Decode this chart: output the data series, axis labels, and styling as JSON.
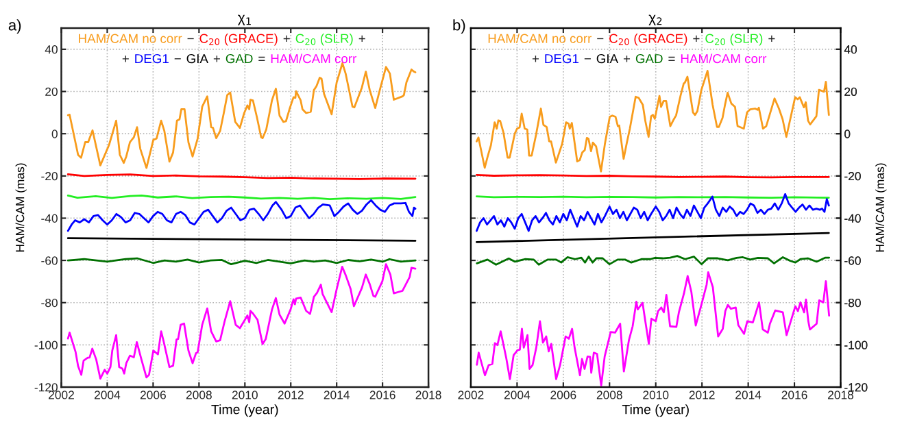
{
  "chart_data": [
    {
      "type": "line",
      "title": "χ$_{1}$",
      "xlabel": "Time (year)",
      "ylabel": "HAM/CAM (mas)",
      "xlim": [
        2002,
        2018
      ],
      "xticks": [
        2002,
        2004,
        2006,
        2008,
        2010,
        2012,
        2014,
        2016,
        2018
      ],
      "ylim": [
        -120,
        50
      ],
      "yticks": [
        -120,
        -100,
        -80,
        -60,
        -40,
        -20,
        0,
        20,
        40
      ],
      "grid": true,
      "legend": "top",
      "line_style": "solid",
      "annotations": [
        "a)",
        "−",
        "+",
        "+",
        "+",
        "−",
        "+",
        "="
      ],
      "series": [
        {
          "name": "HAM/CAM no corr",
          "color": "#f89c1c",
          "x": [
            2002.29,
            2002.36,
            2002.73,
            2002.86,
            2003.04,
            2003.17,
            2003.36,
            2003.7,
            2004.08,
            2004.39,
            2004.55,
            2004.72,
            2004.83,
            2004.99,
            2005.16,
            2005.3,
            2005.44,
            2005.71,
            2006.01,
            2006.15,
            2006.35,
            2006.49,
            2006.71,
            2006.87,
            2007.04,
            2007.15,
            2007.23,
            2007.37,
            2007.54,
            2007.72,
            2007.94,
            2008.14,
            2008.36,
            2008.53,
            2008.61,
            2008.75,
            2008.92,
            2009.08,
            2009.23,
            2009.36,
            2009.58,
            2009.78,
            2009.97,
            2010.11,
            2010.19,
            2010.24,
            2010.35,
            2010.52,
            2010.71,
            2010.77,
            2010.93,
            2011.18,
            2011.35,
            2011.51,
            2011.68,
            2011.79,
            2011.96,
            2012.12,
            2012.2,
            2012.23,
            2012.43,
            2012.51,
            2012.67,
            2012.87,
            2013.01,
            2013.12,
            2013.26,
            2013.34,
            2013.45,
            2013.78,
            2014.0,
            2014.25,
            2014.39,
            2014.69,
            2014.77,
            2015.1,
            2015.27,
            2015.44,
            2015.68,
            2015.88,
            2016.15,
            2016.32,
            2016.49,
            2016.87,
            2016.93,
            2017.04,
            2017.26,
            2017.37,
            2017.43
          ],
          "values": [
            8.8,
            9,
            -10,
            -11.4,
            -4,
            -4,
            1.6,
            -15,
            -5.3,
            6.2,
            -10,
            -13.8,
            -10.8,
            -4,
            -1.7,
            3.1,
            -7.1,
            -16.2,
            -2.9,
            -2.3,
            6.2,
            1.3,
            -13.2,
            -8.9,
            6.2,
            6.8,
            11.6,
            11.6,
            -4.1,
            -10.8,
            -2.3,
            12.8,
            17.7,
            3.1,
            2.8,
            -2.1,
            1.3,
            9.8,
            18.3,
            19.5,
            5.6,
            2.8,
            9.8,
            13.4,
            11.6,
            16.1,
            15.8,
            8,
            -1.7,
            -2.1,
            1.9,
            15.8,
            21.3,
            8.6,
            5.6,
            5.9,
            12.2,
            17.3,
            17,
            20.1,
            15.8,
            11.6,
            9.8,
            10.4,
            20.7,
            22.5,
            26.5,
            26.1,
            18.9,
            9.2,
            24.3,
            33.4,
            28.5,
            12.8,
            12.5,
            21.9,
            29.4,
            20.7,
            12.2,
            20.7,
            31.6,
            28.5,
            16.1,
            17.7,
            18.3,
            24.3,
            30.4,
            29.4,
            29.1
          ]
        },
        {
          "name": "C$_{20}$ (GRACE)",
          "color": "#ff0000",
          "x": [
            2002.29,
            2003,
            2004,
            2005,
            2006,
            2007,
            2008,
            2009,
            2010,
            2011,
            2012,
            2013,
            2014,
            2015,
            2016,
            2017.43
          ],
          "values": [
            -19.2,
            -20,
            -19.5,
            -19.3,
            -20,
            -19.8,
            -20.2,
            -20.3,
            -20.6,
            -21,
            -20.8,
            -21.2,
            -21.3,
            -21.5,
            -21.2,
            -21.3
          ]
        },
        {
          "name": "C$_{20}$ (SLR)",
          "color": "#22ee22",
          "x": [
            2002.29,
            2002.7,
            2003.5,
            2004.2,
            2005,
            2005.5,
            2006.2,
            2007,
            2007.7,
            2008.5,
            2009.3,
            2010,
            2010.7,
            2011.5,
            2012.3,
            2013,
            2013.7,
            2014.5,
            2015.3,
            2016,
            2016.8,
            2017.43
          ],
          "values": [
            -29.3,
            -30.3,
            -29.6,
            -30.4,
            -29.5,
            -29.3,
            -30.2,
            -29.7,
            -30.5,
            -30,
            -29.8,
            -30.2,
            -30.7,
            -30.4,
            -30.8,
            -30.4,
            -31,
            -30.6,
            -30.8,
            -30.4,
            -30.9,
            -30
          ]
        },
        {
          "name": "DEG1",
          "color": "#0000ff",
          "x": [
            2002.29,
            2002.45,
            2002.6,
            2002.8,
            2003.0,
            2003.2,
            2003.4,
            2003.6,
            2003.8,
            2004.0,
            2004.2,
            2004.4,
            2004.6,
            2004.8,
            2005.0,
            2005.2,
            2005.4,
            2005.6,
            2005.8,
            2006.0,
            2006.2,
            2006.4,
            2006.6,
            2006.8,
            2007.0,
            2007.2,
            2007.4,
            2007.6,
            2007.8,
            2008.0,
            2008.2,
            2008.4,
            2008.6,
            2008.8,
            2009.0,
            2009.2,
            2009.4,
            2009.6,
            2009.8,
            2010.0,
            2010.2,
            2010.4,
            2010.6,
            2010.8,
            2011.0,
            2011.2,
            2011.35,
            2011.6,
            2011.8,
            2012.0,
            2012.2,
            2012.4,
            2012.6,
            2012.8,
            2013.0,
            2013.2,
            2013.4,
            2013.7,
            2013.9,
            2014.1,
            2014.3,
            2014.5,
            2014.7,
            2014.9,
            2015.1,
            2015.3,
            2015.5,
            2015.7,
            2015.9,
            2016.1,
            2016.3,
            2016.5,
            2016.8,
            2017.0,
            2017.15,
            2017.3,
            2017.37,
            2017.43
          ],
          "values": [
            -46,
            -43,
            -41,
            -42,
            -40.5,
            -42,
            -39,
            -38.5,
            -41,
            -43,
            -41,
            -38,
            -39.5,
            -42,
            -41,
            -37.5,
            -38,
            -40,
            -42,
            -39,
            -37,
            -38,
            -41,
            -42,
            -38,
            -37,
            -38.5,
            -42,
            -43,
            -40,
            -37,
            -36,
            -39,
            -42,
            -40,
            -36.5,
            -35,
            -38,
            -41,
            -40,
            -36,
            -35.5,
            -38,
            -41,
            -38,
            -34,
            -32.3,
            -36,
            -40,
            -39,
            -35,
            -34,
            -37,
            -40,
            -38,
            -35,
            -33.5,
            -34,
            -39,
            -37,
            -34.5,
            -33,
            -36,
            -38,
            -36.5,
            -33.5,
            -31.5,
            -34,
            -36,
            -37,
            -34,
            -33,
            -33,
            -32.8,
            -37,
            -39,
            -35,
            -35.5
          ]
        },
        {
          "name": "GIA",
          "color": "#000000",
          "x": [
            2002.29,
            2017.43
          ],
          "values": [
            -49.5,
            -50.7
          ]
        },
        {
          "name": "GAD",
          "color": "#007000",
          "x": [
            2002.29,
            2003,
            2004,
            2004.8,
            2005.3,
            2006,
            2006.5,
            2007,
            2007.5,
            2008,
            2008.5,
            2009,
            2009.4,
            2010,
            2010.5,
            2011,
            2011.5,
            2012,
            2012.6,
            2013,
            2013.5,
            2014,
            2014.5,
            2015,
            2015.5,
            2016,
            2016.3,
            2016.8,
            2017.43
          ],
          "values": [
            -60,
            -59.4,
            -60.6,
            -59.4,
            -59,
            -61.2,
            -60,
            -60.6,
            -59.6,
            -61,
            -60,
            -59.8,
            -61.8,
            -60.2,
            -61.2,
            -59.8,
            -60.6,
            -61.4,
            -60,
            -60.6,
            -60,
            -61.2,
            -59.8,
            -60.4,
            -59.6,
            -60.6,
            -59.4,
            -60.6,
            -60
          ]
        },
        {
          "name": "HAM/CAM corr",
          "color": "#ff00ff",
          "x": [
            2002.29,
            2002.36,
            2002.62,
            2002.73,
            2002.87,
            2002.97,
            2003.15,
            2003.23,
            2003.35,
            2003.52,
            2003.7,
            2003.89,
            2004.0,
            2004.14,
            2004.22,
            2004.39,
            2004.52,
            2004.66,
            2004.74,
            2004.83,
            2004.99,
            2005.16,
            2005.29,
            2005.49,
            2005.71,
            2005.82,
            2006.01,
            2006.21,
            2006.35,
            2006.46,
            2006.71,
            2006.87,
            2007.02,
            2007.09,
            2007.2,
            2007.35,
            2007.54,
            2007.72,
            2007.87,
            2007.94,
            2008.14,
            2008.36,
            2008.53,
            2008.75,
            2008.92,
            2009.12,
            2009.36,
            2009.6,
            2009.78,
            2009.97,
            2010.11,
            2010.19,
            2010.24,
            2010.35,
            2010.55,
            2010.77,
            2010.91,
            2011.18,
            2011.35,
            2011.51,
            2011.73,
            2011.99,
            2012.12,
            2012.18,
            2012.23,
            2012.43,
            2012.67,
            2012.84,
            2013.01,
            2013.14,
            2013.31,
            2013.39,
            2013.78,
            2014.0,
            2014.24,
            2014.39,
            2014.61,
            2014.75,
            2015.1,
            2015.27,
            2015.44,
            2015.6,
            2015.68,
            2015.99,
            2016.15,
            2016.34,
            2016.49,
            2016.87,
            2017.18,
            2017.26,
            2017.43
          ],
          "values": [
            -97,
            -94.2,
            -103.3,
            -110,
            -114.2,
            -107.5,
            -106.1,
            -106,
            -101.8,
            -106.9,
            -116,
            -111.8,
            -113.6,
            -110.5,
            -102.7,
            -95.4,
            -110.5,
            -111.2,
            -113.6,
            -108.7,
            -105.1,
            -105.9,
            -98.7,
            -106.9,
            -115.4,
            -114.2,
            -102.7,
            -104.5,
            -93.6,
            -98.4,
            -110.5,
            -109.9,
            -97.5,
            -97.2,
            -90.5,
            -89.9,
            -102.7,
            -108.7,
            -103.9,
            -103.5,
            -90.5,
            -82.7,
            -93.6,
            -98.4,
            -97.8,
            -88.7,
            -79.3,
            -90.5,
            -92.1,
            -88.7,
            -86.1,
            -89.3,
            -83.9,
            -85.1,
            -88.1,
            -99.6,
            -97.2,
            -83.3,
            -77.8,
            -85.7,
            -89.9,
            -83.3,
            -78.4,
            -80.8,
            -78.1,
            -77.6,
            -83.9,
            -85.3,
            -77.2,
            -75.4,
            -71.5,
            -76,
            -84.5,
            -73.6,
            -63,
            -66.9,
            -73.6,
            -81.7,
            -73,
            -66.7,
            -71.2,
            -76.8,
            -77.2,
            -69.9,
            -61.8,
            -66.7,
            -75.6,
            -74.4,
            -67.9,
            -63.5,
            -63.9
          ]
        }
      ]
    },
    {
      "type": "line",
      "title": "χ$_{2}$",
      "xlabel": "Time (year)",
      "y2label": "HAM/CAM (mas)",
      "xlim": [
        2002,
        2018
      ],
      "xticks": [
        2002,
        2004,
        2006,
        2008,
        2010,
        2012,
        2014,
        2016,
        2018
      ],
      "y2lim": [
        -120,
        50
      ],
      "y2ticks": [
        -120,
        -100,
        -80,
        -60,
        -40,
        -20,
        0,
        20,
        40
      ],
      "grid": true,
      "legend": "top",
      "line_style": "solid",
      "annotations": [
        "b)",
        "−",
        "+",
        "+",
        "+",
        "−",
        "+",
        "="
      ],
      "series": [
        {
          "name": "HAM/CAM no corr",
          "color": "#f89c1c",
          "axis": "y2",
          "x": [
            2002.25,
            2002.33,
            2002.6,
            2002.73,
            2002.87,
            2003.03,
            2003.12,
            2003.19,
            2003.27,
            2003.41,
            2003.59,
            2003.68,
            2003.9,
            2004.0,
            2004.11,
            2004.2,
            2004.33,
            2004.44,
            2004.52,
            2004.63,
            2004.82,
            2005.03,
            2005.14,
            2005.28,
            2005.39,
            2005.47,
            2005.68,
            2005.95,
            2006.12,
            2006.23,
            2006.28,
            2006.37,
            2006.6,
            2006.71,
            2006.82,
            2006.93,
            2007.02,
            2007.09,
            2007.2,
            2007.28,
            2007.42,
            2007.63,
            2007.8,
            2008.01,
            2008.12,
            2008.26,
            2008.36,
            2008.42,
            2008.61,
            2008.75,
            2008.88,
            2009.13,
            2009.26,
            2009.44,
            2009.55,
            2009.69,
            2009.8,
            2009.88,
            2009.96,
            2010.16,
            2010.23,
            2010.34,
            2010.45,
            2010.63,
            2010.78,
            2010.88,
            2011.07,
            2011.21,
            2011.26,
            2011.37,
            2011.61,
            2011.7,
            2011.8,
            2011.97,
            2012.24,
            2012.46,
            2012.65,
            2012.73,
            2012.89,
            2013.0,
            2013.11,
            2013.27,
            2013.43,
            2013.54,
            2013.81,
            2013.95,
            2014.08,
            2014.3,
            2014.41,
            2014.46,
            2014.64,
            2014.78,
            2015.14,
            2015.33,
            2015.49,
            2015.65,
            2016.03,
            2016.14,
            2016.23,
            2016.41,
            2016.49,
            2016.59,
            2016.68,
            2016.95,
            2017.06,
            2017.28,
            2017.36,
            2017.49
          ],
          "values": [
            -3.6,
            -1.8,
            -16.1,
            -10.7,
            -5.4,
            5.4,
            2.4,
            6.3,
            6,
            0.6,
            -11.3,
            -11.3,
            0,
            2.4,
            3,
            9.5,
            2.4,
            2,
            -10.4,
            -10.4,
            -0.6,
            11.9,
            4.2,
            3.2,
            -3.6,
            -3.6,
            -13.7,
            -4.8,
            5.4,
            4.8,
            2.4,
            5.1,
            -13.1,
            -12.5,
            -8.9,
            -7.7,
            -2,
            -2.4,
            -8.3,
            -4.2,
            -6,
            -17.9,
            -4.8,
            8,
            8.6,
            8,
            3.6,
            3.9,
            -11.9,
            -4.2,
            2.4,
            17.5,
            17,
            13.7,
            6,
            -1.5,
            8.3,
            8.9,
            7.1,
            17.9,
            12.7,
            15.5,
            15.5,
            3.6,
            6.8,
            8.7,
            17.9,
            23.8,
            24.2,
            27,
            10.1,
            8.9,
            10.7,
            20.6,
            29.8,
            13.7,
            3.2,
            3.2,
            7.5,
            13.9,
            19.4,
            14.3,
            12.7,
            3.6,
            2.4,
            10.1,
            11.5,
            11.9,
            11.3,
            12.3,
            2.4,
            3.6,
            16.7,
            11.9,
            6.8,
            -1.5,
            17.3,
            16.3,
            17.3,
            12.5,
            14.9,
            6.2,
            4.4,
            8.3,
            20.8,
            19.9,
            24.6,
            8.9
          ]
        },
        {
          "name": "C$_{20}$ (GRACE)",
          "color": "#ff0000",
          "axis": "y2",
          "x": [
            2002.25,
            2003,
            2004,
            2005,
            2006,
            2007,
            2008,
            2009,
            2010,
            2011,
            2012,
            2013,
            2014,
            2015,
            2016,
            2017.49
          ],
          "values": [
            -19.5,
            -19.9,
            -19.7,
            -19.6,
            -19.8,
            -20,
            -19.9,
            -20.2,
            -20.3,
            -20.5,
            -20.4,
            -20.3,
            -20.6,
            -20.7,
            -20.5,
            -20.5
          ]
        },
        {
          "name": "C$_{20}$ (SLR)",
          "color": "#22ee22",
          "axis": "y2",
          "x": [
            2002.25,
            2003,
            2004,
            2005,
            2006,
            2007,
            2008,
            2009,
            2010,
            2011,
            2012,
            2013,
            2014,
            2015,
            2016,
            2017.49
          ],
          "values": [
            -29.7,
            -30.1,
            -29.9,
            -30,
            -29.8,
            -30.1,
            -29.9,
            -30,
            -30.2,
            -30,
            -30.1,
            -30,
            -30.2,
            -30.3,
            -30.1,
            -30.3
          ]
        },
        {
          "name": "DEG1",
          "color": "#0000ff",
          "axis": "y2",
          "x": [
            2002.25,
            2002.4,
            2002.55,
            2002.7,
            2002.85,
            2003.0,
            2003.15,
            2003.3,
            2003.45,
            2003.6,
            2003.75,
            2003.9,
            2004.05,
            2004.2,
            2004.35,
            2004.5,
            2004.65,
            2004.8,
            2004.95,
            2005.1,
            2005.25,
            2005.4,
            2005.55,
            2005.7,
            2005.85,
            2006.0,
            2006.15,
            2006.3,
            2006.45,
            2006.6,
            2006.75,
            2006.9,
            2007.05,
            2007.2,
            2007.35,
            2007.5,
            2007.65,
            2007.8,
            2008.0,
            2008.15,
            2008.3,
            2008.45,
            2008.6,
            2008.75,
            2008.9,
            2009.05,
            2009.2,
            2009.35,
            2009.5,
            2009.65,
            2009.8,
            2010.0,
            2010.15,
            2010.3,
            2010.45,
            2010.6,
            2010.75,
            2010.9,
            2011.05,
            2011.2,
            2011.35,
            2011.5,
            2011.65,
            2011.8,
            2011.95,
            2012.1,
            2012.25,
            2012.45,
            2012.6,
            2012.75,
            2012.9,
            2013.05,
            2013.2,
            2013.35,
            2013.5,
            2013.65,
            2013.8,
            2013.95,
            2014.1,
            2014.25,
            2014.4,
            2014.55,
            2014.7,
            2014.85,
            2015.0,
            2015.15,
            2015.3,
            2015.45,
            2015.6,
            2015.75,
            2015.9,
            2016.05,
            2016.2,
            2016.35,
            2016.5,
            2016.65,
            2016.8,
            2016.95,
            2017.1,
            2017.2,
            2017.3,
            2017.4,
            2017.49
          ],
          "values": [
            -46,
            -42,
            -40,
            -43,
            -41,
            -39,
            -43,
            -41,
            -44,
            -40,
            -42,
            -45,
            -40,
            -38,
            -42,
            -46,
            -41,
            -39,
            -42,
            -40,
            -37.5,
            -41,
            -43,
            -39,
            -42,
            -38,
            -41,
            -36,
            -40,
            -44,
            -39,
            -41,
            -37,
            -40,
            -43,
            -38,
            -42,
            -39,
            -34.5,
            -38,
            -36,
            -40,
            -37,
            -41,
            -38,
            -35,
            -36,
            -40,
            -37,
            -41,
            -38,
            -34.5,
            -37,
            -41,
            -39,
            -36,
            -40,
            -35,
            -38,
            -40,
            -36,
            -39,
            -34,
            -37,
            -40,
            -35,
            -33,
            -29.8,
            -36,
            -39,
            -35,
            -37,
            -34.5,
            -36,
            -39,
            -37,
            -38,
            -36,
            -33,
            -34,
            -37.5,
            -36,
            -38,
            -36,
            -35.5,
            -33,
            -36,
            -33,
            -28.6,
            -33,
            -35,
            -37,
            -35,
            -33.5,
            -36,
            -34,
            -36,
            -35.5,
            -36,
            -35.5,
            -37,
            -31,
            -34
          ]
        },
        {
          "name": "GIA",
          "color": "#000000",
          "axis": "y2",
          "x": [
            2002.25,
            2017.49
          ],
          "values": [
            -51.3,
            -47
          ]
        },
        {
          "name": "GAD",
          "color": "#007000",
          "axis": "y2",
          "x": [
            2002.26,
            2002.72,
            2003.09,
            2003.64,
            2003.91,
            2004.34,
            2004.72,
            2004.94,
            2005.32,
            2005.69,
            2005.91,
            2006.18,
            2006.51,
            2006.78,
            2006.94,
            2007.1,
            2007.27,
            2007.43,
            2007.7,
            2008.0,
            2008.35,
            2008.67,
            2008.94,
            2009.38,
            2009.76,
            2009.97,
            2010.3,
            2010.62,
            2010.93,
            2011.27,
            2011.65,
            2011.98,
            2012.25,
            2012.68,
            2013.12,
            2013.5,
            2013.77,
            2014.09,
            2014.42,
            2014.85,
            2015.12,
            2015.5,
            2015.82,
            2016.04,
            2016.26,
            2016.58,
            2016.96,
            2017.34,
            2017.5
          ],
          "values": [
            -61.4,
            -59.6,
            -62,
            -59.1,
            -60.6,
            -59.4,
            -59.6,
            -62,
            -59.6,
            -59.6,
            -61,
            -58.5,
            -59.4,
            -58.7,
            -61,
            -58.2,
            -61,
            -59,
            -59,
            -61.8,
            -59.6,
            -59.6,
            -61,
            -59.4,
            -59.4,
            -58.8,
            -59,
            -58.7,
            -57.9,
            -59.4,
            -58.2,
            -61.8,
            -59,
            -59,
            -59.9,
            -58.8,
            -58.5,
            -59.6,
            -58.8,
            -59,
            -61.4,
            -58.5,
            -60.2,
            -61,
            -59.4,
            -59,
            -60.6,
            -58.7,
            -58.7
          ]
        },
        {
          "name": "HAM/CAM corr",
          "color": "#ff00ff",
          "axis": "y2",
          "x": [
            2002.26,
            2002.34,
            2002.61,
            2002.77,
            2002.93,
            2003.04,
            2003.15,
            2003.29,
            2003.53,
            2003.69,
            2003.85,
            2004.02,
            2004.12,
            2004.21,
            2004.29,
            2004.45,
            2004.54,
            2004.67,
            2004.83,
            2004.99,
            2005.12,
            2005.26,
            2005.37,
            2005.48,
            2005.69,
            2005.86,
            2006.1,
            2006.24,
            2006.38,
            2006.49,
            2006.72,
            2006.81,
            2006.92,
            2007.05,
            2007.16,
            2007.21,
            2007.32,
            2007.46,
            2007.64,
            2007.79,
            2008.05,
            2008.24,
            2008.46,
            2008.62,
            2008.84,
            2009.0,
            2009.16,
            2009.22,
            2009.43,
            2009.54,
            2009.7,
            2009.81,
            2010.0,
            2010.1,
            2010.24,
            2010.35,
            2010.46,
            2010.62,
            2010.89,
            2011.0,
            2011.22,
            2011.38,
            2011.54,
            2011.73,
            2011.98,
            2012.2,
            2012.27,
            2012.47,
            2012.7,
            2012.9,
            2013.01,
            2013.12,
            2013.25,
            2013.46,
            2013.57,
            2013.82,
            2013.96,
            2014.2,
            2014.31,
            2014.47,
            2014.63,
            2014.85,
            2014.94,
            2015.17,
            2015.5,
            2015.66,
            2016.04,
            2016.15,
            2016.26,
            2016.42,
            2016.5,
            2016.6,
            2016.67,
            2016.96,
            2017.07,
            2017.25,
            2017.36,
            2017.5
          ],
          "values": [
            -109.4,
            -103.7,
            -114.4,
            -109.6,
            -109,
            -99.2,
            -100.1,
            -93.6,
            -106.1,
            -116.2,
            -104.9,
            -102.5,
            -102.3,
            -92.4,
            -101.3,
            -95.4,
            -111.4,
            -109.6,
            -101.3,
            -88.8,
            -98.9,
            -96,
            -103.1,
            -99.5,
            -116.2,
            -109.6,
            -96,
            -97.1,
            -92.4,
            -101.3,
            -114.4,
            -106.7,
            -111.4,
            -105.5,
            -105.7,
            -113.2,
            -103.7,
            -104.3,
            -119.2,
            -105.5,
            -93.9,
            -94.2,
            -90,
            -112.6,
            -97.7,
            -91.2,
            -79.6,
            -83.2,
            -80.1,
            -88.2,
            -99.5,
            -87.6,
            -88.8,
            -84,
            -82.3,
            -84.6,
            -76.3,
            -91.2,
            -91.5,
            -84.6,
            -75.7,
            -67.4,
            -74.9,
            -90.8,
            -80.8,
            -71.5,
            -65.6,
            -72.7,
            -96,
            -92.4,
            -84,
            -81.1,
            -82.9,
            -82.3,
            -90.6,
            -94.8,
            -88.8,
            -89.4,
            -85.6,
            -79.9,
            -92.7,
            -94.2,
            -90,
            -83.7,
            -84.6,
            -95.4,
            -81.7,
            -84,
            -79.9,
            -84.6,
            -78.5,
            -88.8,
            -92.7,
            -90,
            -78.9,
            -79.9,
            -69.8,
            -86.1
          ]
        }
      ]
    }
  ]
}
